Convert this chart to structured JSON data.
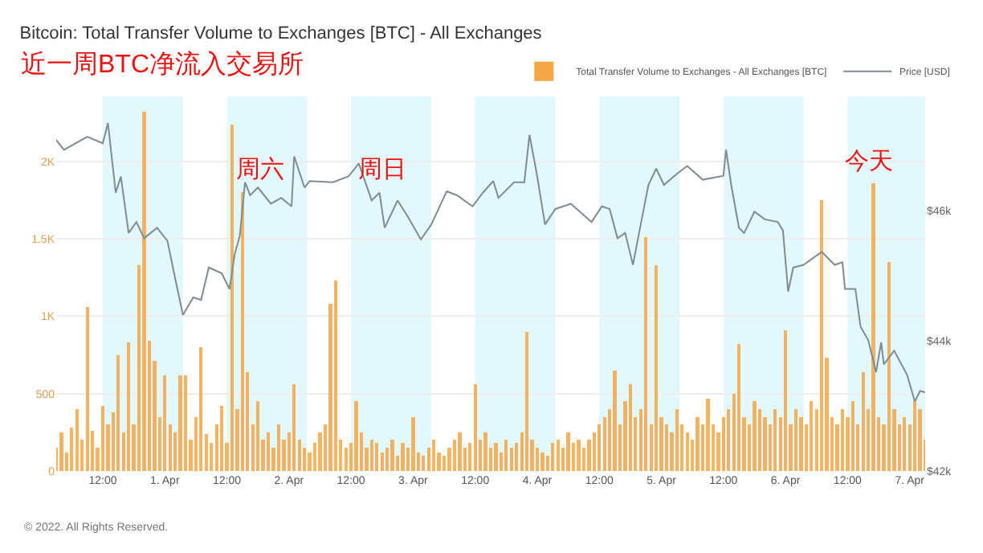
{
  "chart_data": {
    "type": "bar",
    "title": "Bitcoin: Total Transfer Volume to Exchanges [BTC] - All Exchanges",
    "subtitle": "近一周BTC净流入交易所",
    "annotations": [
      "周六",
      "周日",
      "今天",
      "© 2022. All Rights Reserved."
    ],
    "xlim": [
      "2022-03-31T03:00",
      "2022-04-07T03:00"
    ],
    "xticks": [
      {
        "value": "2022-03-31T12:00",
        "label": "12:00"
      },
      {
        "value": "2022-04-01",
        "label": "1. Apr"
      },
      {
        "value": "2022-04-01T12:00",
        "label": "12:00"
      },
      {
        "value": "2022-04-02",
        "label": "2. Apr"
      },
      {
        "value": "2022-04-02T12:00",
        "label": "12:00"
      },
      {
        "value": "2022-04-03",
        "label": "3. Apr"
      },
      {
        "value": "2022-04-03T12:00",
        "label": "12:00"
      },
      {
        "value": "2022-04-04",
        "label": "4. Apr"
      },
      {
        "value": "2022-04-04T12:00",
        "label": "12:00"
      },
      {
        "value": "2022-04-05",
        "label": "5. Apr"
      },
      {
        "value": "2022-04-05T12:00",
        "label": "12:00"
      },
      {
        "value": "2022-04-06",
        "label": "6. Apr"
      },
      {
        "value": "2022-04-06T12:00",
        "label": "12:00"
      },
      {
        "value": "2022-04-07",
        "label": "7. Apr"
      }
    ],
    "ylim": [
      0,
      2420
    ],
    "yticks": [
      0,
      500,
      {
        "value": 1000,
        "label": "1K"
      },
      {
        "value": 1500,
        "label": "1.5K"
      },
      {
        "value": 2000,
        "label": "2K"
      }
    ],
    "y2lim": [
      42000,
      47760
    ],
    "y2ticks": [
      {
        "value": 42000,
        "label": "$42k"
      },
      {
        "value": 44000,
        "label": "$44k"
      },
      {
        "value": 46000,
        "label": "$46k"
      }
    ],
    "grid": "y",
    "legend": "top right",
    "bands": [
      {
        "axis": "x",
        "from": "2022-03-31T12:00",
        "to": "2022-04-01T03:30",
        "color": "#e2f8fc"
      },
      {
        "axis": "x",
        "from": "2022-04-01T12:00",
        "to": "2022-04-02T03:30",
        "color": "#e2f8fc"
      },
      {
        "axis": "x",
        "from": "2022-04-02T12:00",
        "to": "2022-04-03T03:30",
        "color": "#e2f8fc"
      },
      {
        "axis": "x",
        "from": "2022-04-03T12:00",
        "to": "2022-04-04T03:30",
        "color": "#e2f8fc"
      },
      {
        "axis": "x",
        "from": "2022-04-04T12:00",
        "to": "2022-04-05T03:30",
        "color": "#e2f8fc"
      },
      {
        "axis": "x",
        "from": "2022-04-05T12:00",
        "to": "2022-04-06T03:30",
        "color": "#e2f8fc"
      },
      {
        "axis": "x",
        "from": "2022-04-06T12:00",
        "to": "2022-04-07T03:00",
        "color": "#e2f8fc"
      }
    ],
    "series": [
      {
        "name": "Total Transfer Volume to Exchanges - All Exchanges [BTC]",
        "color": "#f5a645",
        "x": [
          "2022-03-31T03:00",
          "2022-03-31T04:00",
          "2022-03-31T05:00",
          "2022-03-31T06:00",
          "2022-03-31T07:00",
          "2022-03-31T08:00",
          "2022-03-31T09:00",
          "2022-03-31T10:00",
          "2022-03-31T11:00",
          "2022-03-31T12:00",
          "2022-03-31T13:00",
          "2022-03-31T14:00",
          "2022-03-31T15:00",
          "2022-03-31T16:00",
          "2022-03-31T17:00",
          "2022-03-31T18:00",
          "2022-03-31T19:00",
          "2022-03-31T20:00",
          "2022-03-31T21:00",
          "2022-03-31T22:00",
          "2022-03-31T23:00",
          "2022-04-01T00:00",
          "2022-04-01T01:00",
          "2022-04-01T02:00",
          "2022-04-01T03:00",
          "2022-04-01T04:00",
          "2022-04-01T05:00",
          "2022-04-01T06:00",
          "2022-04-01T07:00",
          "2022-04-01T08:00",
          "2022-04-01T09:00",
          "2022-04-01T10:00",
          "2022-04-01T11:00",
          "2022-04-01T12:00",
          "2022-04-01T13:00",
          "2022-04-01T14:00",
          "2022-04-01T15:00",
          "2022-04-01T16:00",
          "2022-04-01T17:00",
          "2022-04-01T18:00",
          "2022-04-01T19:00",
          "2022-04-01T20:00",
          "2022-04-01T21:00",
          "2022-04-01T22:00",
          "2022-04-01T23:00",
          "2022-04-02T00:00",
          "2022-04-02T01:00",
          "2022-04-02T02:00",
          "2022-04-02T03:00",
          "2022-04-02T04:00",
          "2022-04-02T05:00",
          "2022-04-02T06:00",
          "2022-04-02T07:00",
          "2022-04-02T08:00",
          "2022-04-02T09:00",
          "2022-04-02T10:00",
          "2022-04-02T11:00",
          "2022-04-02T12:00",
          "2022-04-02T13:00",
          "2022-04-02T14:00",
          "2022-04-02T15:00",
          "2022-04-02T16:00",
          "2022-04-02T17:00",
          "2022-04-02T18:00",
          "2022-04-02T19:00",
          "2022-04-02T20:00",
          "2022-04-02T21:00",
          "2022-04-02T22:00",
          "2022-04-02T23:00",
          "2022-04-03T00:00",
          "2022-04-03T01:00",
          "2022-04-03T02:00",
          "2022-04-03T03:00",
          "2022-04-03T04:00",
          "2022-04-03T05:00",
          "2022-04-03T06:00",
          "2022-04-03T07:00",
          "2022-04-03T08:00",
          "2022-04-03T09:00",
          "2022-04-03T10:00",
          "2022-04-03T11:00",
          "2022-04-03T12:00",
          "2022-04-03T13:00",
          "2022-04-03T14:00",
          "2022-04-03T15:00",
          "2022-04-03T16:00",
          "2022-04-03T17:00",
          "2022-04-03T18:00",
          "2022-04-03T19:00",
          "2022-04-03T20:00",
          "2022-04-03T21:00",
          "2022-04-03T22:00",
          "2022-04-03T23:00",
          "2022-04-04T00:00",
          "2022-04-04T01:00",
          "2022-04-04T02:00",
          "2022-04-04T03:00",
          "2022-04-04T04:00",
          "2022-04-04T05:00",
          "2022-04-04T06:00",
          "2022-04-04T07:00",
          "2022-04-04T08:00",
          "2022-04-04T09:00",
          "2022-04-04T10:00",
          "2022-04-04T11:00",
          "2022-04-04T12:00",
          "2022-04-04T13:00",
          "2022-04-04T14:00",
          "2022-04-04T15:00",
          "2022-04-04T16:00",
          "2022-04-04T17:00",
          "2022-04-04T18:00",
          "2022-04-04T19:00",
          "2022-04-04T20:00",
          "2022-04-04T21:00",
          "2022-04-04T22:00",
          "2022-04-04T23:00",
          "2022-04-05T00:00",
          "2022-04-05T01:00",
          "2022-04-05T02:00",
          "2022-04-05T03:00",
          "2022-04-05T04:00",
          "2022-04-05T05:00",
          "2022-04-05T06:00",
          "2022-04-05T07:00",
          "2022-04-05T08:00",
          "2022-04-05T09:00",
          "2022-04-05T10:00",
          "2022-04-05T11:00",
          "2022-04-05T12:00",
          "2022-04-05T13:00",
          "2022-04-05T14:00",
          "2022-04-05T15:00",
          "2022-04-05T16:00",
          "2022-04-05T17:00",
          "2022-04-05T18:00",
          "2022-04-05T19:00",
          "2022-04-05T20:00",
          "2022-04-05T21:00",
          "2022-04-05T22:00",
          "2022-04-05T23:00",
          "2022-04-06T00:00",
          "2022-04-06T01:00",
          "2022-04-06T02:00",
          "2022-04-06T03:00",
          "2022-04-06T04:00",
          "2022-04-06T05:00",
          "2022-04-06T06:00",
          "2022-04-06T07:00",
          "2022-04-06T08:00",
          "2022-04-06T09:00",
          "2022-04-06T10:00",
          "2022-04-06T11:00",
          "2022-04-06T12:00",
          "2022-04-06T13:00",
          "2022-04-06T14:00",
          "2022-04-06T15:00",
          "2022-04-06T16:00",
          "2022-04-06T17:00",
          "2022-04-06T18:00",
          "2022-04-06T19:00",
          "2022-04-06T20:00",
          "2022-04-06T21:00",
          "2022-04-06T22:00",
          "2022-04-06T23:00",
          "2022-04-07T00:00",
          "2022-04-07T01:00",
          "2022-04-07T02:00",
          "2022-04-07T03:00"
        ],
        "values": [
          150,
          250,
          120,
          280,
          400,
          200,
          1060,
          260,
          150,
          420,
          300,
          380,
          750,
          250,
          830,
          300,
          1330,
          2320,
          840,
          710,
          350,
          620,
          300,
          250,
          620,
          620,
          200,
          350,
          800,
          240,
          180,
          300,
          420,
          180,
          2240,
          400,
          1800,
          640,
          300,
          450,
          200,
          250,
          150,
          300,
          200,
          250,
          560,
          200,
          150,
          120,
          180,
          250,
          300,
          1080,
          1230,
          200,
          150,
          180,
          450,
          250,
          150,
          200,
          180,
          120,
          150,
          200,
          100,
          180,
          150,
          350,
          120,
          100,
          150,
          200,
          120,
          100,
          150,
          200,
          250,
          150,
          180,
          560,
          200,
          250,
          150,
          180,
          120,
          200,
          150,
          180,
          250,
          900,
          200,
          150,
          120,
          100,
          180,
          200,
          150,
          250,
          180,
          200,
          150,
          200,
          250,
          300,
          350,
          400,
          650,
          300,
          450,
          560,
          350,
          400,
          1510,
          300,
          1330,
          350,
          300,
          250,
          400,
          300,
          250,
          200,
          350,
          300,
          470,
          300,
          250,
          350,
          400,
          500,
          820,
          350,
          300,
          450,
          400,
          350,
          300,
          400,
          350,
          910,
          300,
          400,
          350,
          300,
          450,
          400,
          1750,
          730,
          350,
          300,
          400,
          350,
          450,
          300,
          640,
          400,
          1860,
          350,
          300,
          1350,
          400,
          300,
          350,
          300,
          450,
          400,
          200
        ]
      },
      {
        "name": "Price [USD]",
        "type": "line",
        "axis": "y2",
        "color": "#7f8c91",
        "x": [
          "2022-03-31T03:00",
          "2022-03-31T04:30",
          "2022-03-31T09:00",
          "2022-03-31T12:00",
          "2022-03-31T13:00",
          "2022-03-31T14:30",
          "2022-03-31T15:30",
          "2022-03-31T17:00",
          "2022-03-31T18:30",
          "2022-03-31T20:00",
          "2022-03-31T22:30",
          "2022-04-01T00:30",
          "2022-04-01T02:00",
          "2022-04-01T03:30",
          "2022-04-01T05:30",
          "2022-04-01T07:00",
          "2022-04-01T08:30",
          "2022-04-01T11:00",
          "2022-04-01T12:30",
          "2022-04-01T13:30",
          "2022-04-01T14:30",
          "2022-04-01T15:30",
          "2022-04-01T16:30",
          "2022-04-01T18:00",
          "2022-04-01T20:30",
          "2022-04-01T22:30",
          "2022-04-02T00:30",
          "2022-04-02T01:00",
          "2022-04-02T03:00",
          "2022-04-02T04:00",
          "2022-04-02T08:30",
          "2022-04-02T11:30",
          "2022-04-02T13:30",
          "2022-04-02T16:00",
          "2022-04-02T17:30",
          "2022-04-02T18:30",
          "2022-04-02T21:00",
          "2022-04-02T23:00",
          "2022-04-03T01:30",
          "2022-04-03T03:30",
          "2022-04-03T06:30",
          "2022-04-03T08:30",
          "2022-04-03T11:30",
          "2022-04-03T13:30",
          "2022-04-03T15:30",
          "2022-04-03T16:30",
          "2022-04-03T19:30",
          "2022-04-03T21:30",
          "2022-04-03T22:30",
          "2022-04-04T00:00",
          "2022-04-04T01:30",
          "2022-04-04T03:30",
          "2022-04-04T06:30",
          "2022-04-04T10:30",
          "2022-04-04T12:30",
          "2022-04-04T14:00",
          "2022-04-04T15:30",
          "2022-04-04T17:00",
          "2022-04-04T18:30",
          "2022-04-04T20:00",
          "2022-04-04T21:30",
          "2022-04-04T23:00",
          "2022-04-05T00:30",
          "2022-04-05T03:00",
          "2022-04-05T05:00",
          "2022-04-05T08:00",
          "2022-04-05T12:00",
          "2022-04-05T12:30",
          "2022-04-05T13:30",
          "2022-04-05T15:00",
          "2022-04-05T16:00",
          "2022-04-05T18:00",
          "2022-04-05T20:00",
          "2022-04-05T22:30",
          "2022-04-05T23:30",
          "2022-04-06T00:30",
          "2022-04-06T01:30",
          "2022-04-06T03:30",
          "2022-04-06T07:00",
          "2022-04-06T09:30",
          "2022-04-06T11:00",
          "2022-04-06T11:30",
          "2022-04-06T13:30",
          "2022-04-06T14:30",
          "2022-04-06T16:00",
          "2022-04-06T17:30",
          "2022-04-06T18:30",
          "2022-04-06T19:00",
          "2022-04-06T21:00",
          "2022-04-06T23:30",
          "2022-04-07T01:00",
          "2022-04-07T02:00",
          "2022-04-07T03:00"
        ],
        "values": [
          47090,
          46940,
          47140,
          47040,
          47350,
          46280,
          46530,
          45660,
          45830,
          45580,
          45740,
          45540,
          44960,
          44400,
          44670,
          44630,
          45130,
          45040,
          44800,
          45330,
          45620,
          46440,
          46240,
          46360,
          46110,
          46200,
          46070,
          46840,
          46360,
          46460,
          46440,
          46530,
          46730,
          46160,
          46280,
          45740,
          46160,
          45910,
          45560,
          45790,
          46300,
          46240,
          46070,
          46280,
          46460,
          46200,
          46440,
          46440,
          47170,
          46530,
          45790,
          46030,
          46110,
          45830,
          46070,
          46030,
          45580,
          45660,
          45170,
          45790,
          46400,
          46650,
          46400,
          46570,
          46690,
          46480,
          46540,
          46940,
          46400,
          45740,
          45660,
          45990,
          45870,
          45830,
          45700,
          44760,
          45130,
          45170,
          45370,
          45170,
          45210,
          44800,
          44800,
          44220,
          44010,
          43520,
          43980,
          43640,
          43850,
          43480,
          43070,
          43230,
          43210
        ]
      }
    ]
  }
}
